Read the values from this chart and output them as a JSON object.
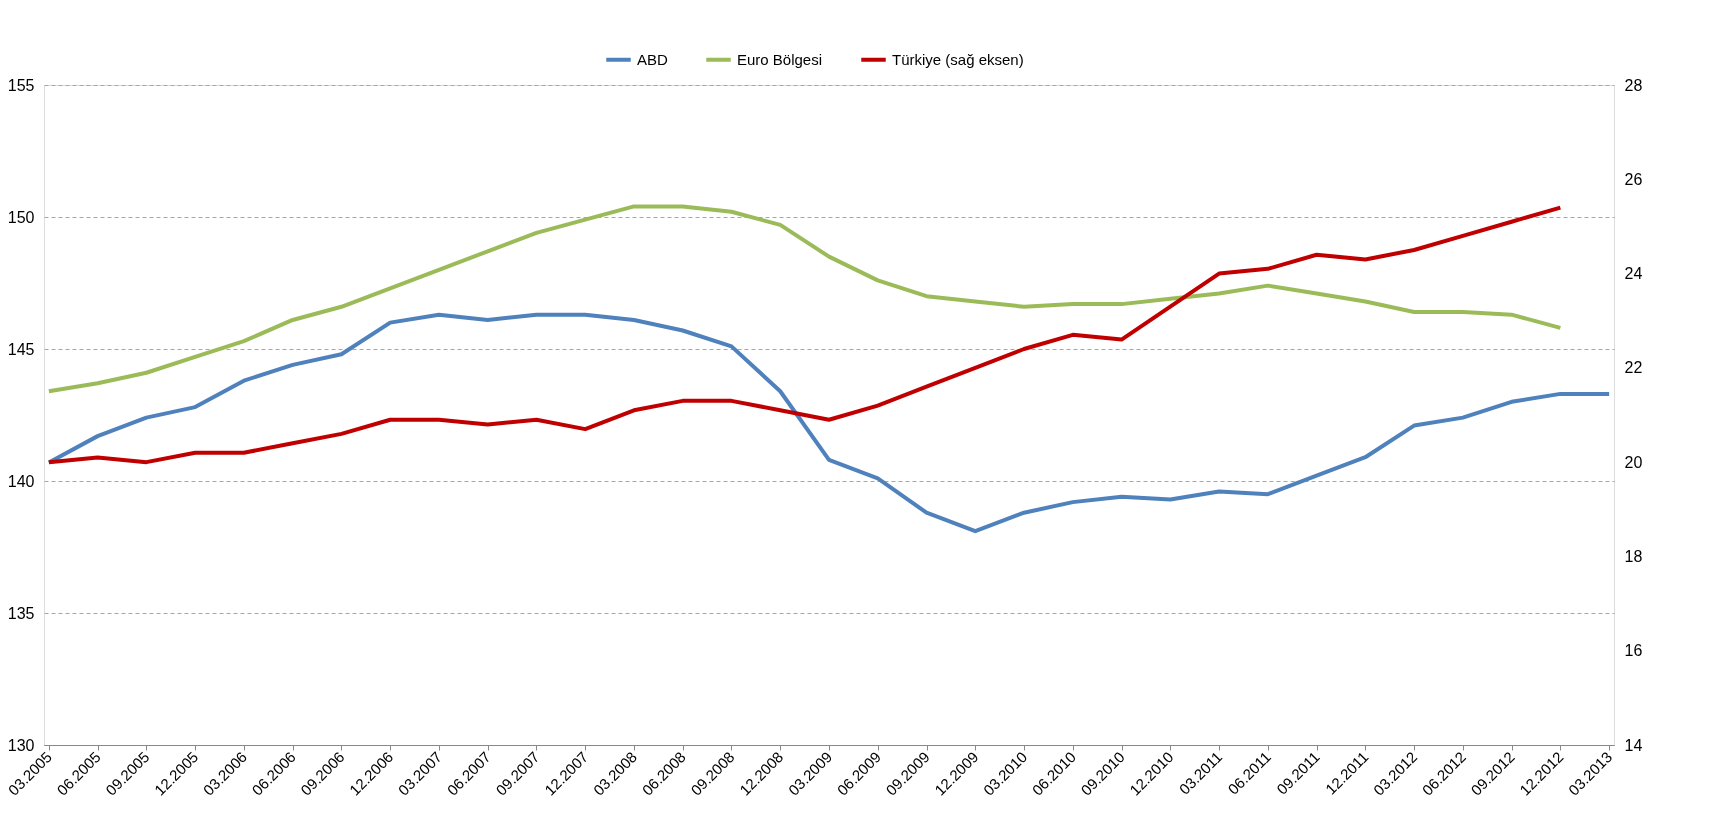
{
  "chart_data": {
    "type": "line",
    "categories": [
      "03.2005",
      "06.2005",
      "09.2005",
      "12.2005",
      "03.2006",
      "06.2006",
      "09.2006",
      "12.2006",
      "03.2007",
      "06.2007",
      "09.2007",
      "12.2007",
      "03.2008",
      "06.2008",
      "09.2008",
      "12.2008",
      "03.2009",
      "06.2009",
      "09.2009",
      "12.2009",
      "03.2010",
      "06.2010",
      "09.2010",
      "12.2010",
      "03.2011",
      "06.2011",
      "09.2011",
      "12.2011",
      "03.2012",
      "06.2012",
      "09.2012",
      "12.2012",
      "03.2013"
    ],
    "series": [
      {
        "name": "ABD",
        "color": "#4f81bd",
        "values": [
          140.7,
          141.7,
          142.4,
          142.8,
          143.8,
          144.4,
          144.8,
          146.0,
          146.3,
          146.1,
          146.3,
          146.3,
          146.1,
          145.7,
          145.1,
          143.4,
          140.8,
          140.1,
          138.8,
          138.1,
          138.8,
          139.2,
          139.4,
          139.3,
          139.6,
          139.5,
          140.2,
          140.9,
          142.1,
          142.4,
          143.0,
          143.3,
          143.3
        ]
      },
      {
        "name": "Euro Bölgesi",
        "color": "#9bbb59",
        "values": [
          143.4,
          143.7,
          144.1,
          144.7,
          145.3,
          146.1,
          146.6,
          147.3,
          148.0,
          148.7,
          149.4,
          149.9,
          150.4,
          150.4,
          150.2,
          149.7,
          148.5,
          147.6,
          147.0,
          146.8,
          146.6,
          146.7,
          146.7,
          146.9,
          147.1,
          147.4,
          147.1,
          146.8,
          146.4,
          146.4,
          146.3,
          145.8,
          null
        ]
      },
      {
        "name": "Türkiye (sağ eksen)",
        "color": "#c00000",
        "axis": "y2",
        "values": [
          20.0,
          20.1,
          20.0,
          20.2,
          20.2,
          20.4,
          20.6,
          20.9,
          20.9,
          20.8,
          20.9,
          20.7,
          21.1,
          21.3,
          21.3,
          21.1,
          20.9,
          21.2,
          21.6,
          22.0,
          22.4,
          22.7,
          22.6,
          23.3,
          24.0,
          24.1,
          24.4,
          24.3,
          24.5,
          24.8,
          25.1,
          25.4,
          null
        ]
      }
    ],
    "ylim": [
      130,
      155
    ],
    "yticks": [
      130,
      135,
      140,
      145,
      150,
      155
    ],
    "y2lim": [
      14,
      28
    ],
    "y2ticks": [
      14,
      16,
      18,
      20,
      22,
      24,
      26,
      28
    ],
    "grid": "y",
    "legend": "top",
    "marker": "none",
    "line_style": "solid"
  }
}
